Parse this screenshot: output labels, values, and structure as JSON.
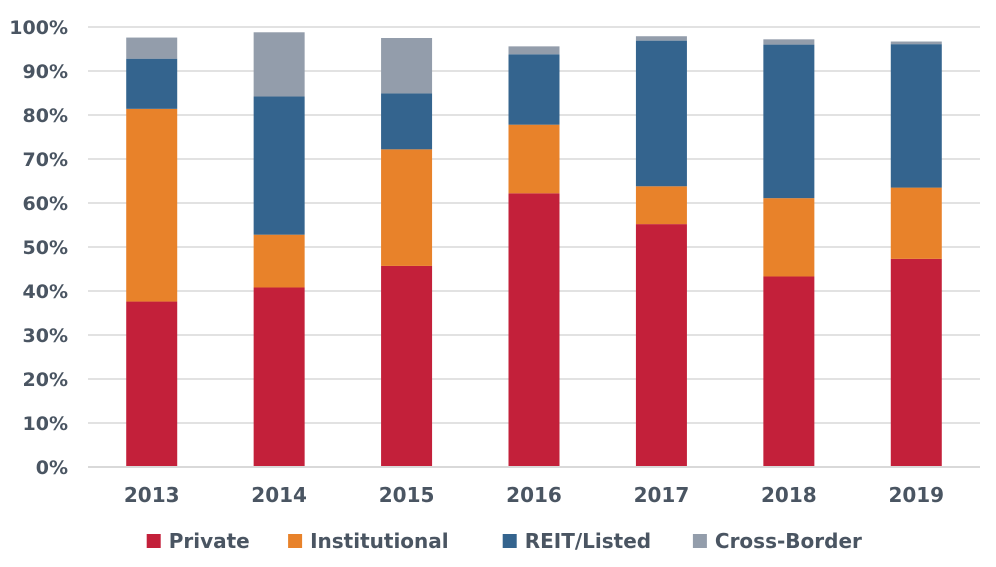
{
  "chart_data": {
    "type": "bar",
    "stacked": true,
    "categories": [
      "2013",
      "2014",
      "2015",
      "2016",
      "2017",
      "2018",
      "2019"
    ],
    "series": [
      {
        "name": "Private",
        "color": "#c3203a",
        "values": [
          37.6,
          40.8,
          45.7,
          62.2,
          55.2,
          43.3,
          47.3
        ]
      },
      {
        "name": "Institutional",
        "color": "#e8822a",
        "values": [
          43.8,
          12.0,
          26.5,
          15.6,
          8.6,
          17.8,
          16.2
        ]
      },
      {
        "name": "REIT/Listed",
        "color": "#34648e",
        "values": [
          11.4,
          31.4,
          12.7,
          16.0,
          33.1,
          34.9,
          32.6
        ]
      },
      {
        "name": "Cross-Border",
        "color": "#939dab",
        "values": [
          4.8,
          14.6,
          12.6,
          1.8,
          1.0,
          1.2,
          0.6
        ]
      }
    ],
    "ylim": [
      0,
      100
    ],
    "yticks": [
      "0%",
      "10%",
      "20%",
      "30%",
      "40%",
      "50%",
      "60%",
      "70%",
      "80%",
      "90%",
      "100%"
    ],
    "grid": true,
    "legend_position": "bottom",
    "axis_color": "#d9d9d9",
    "gridline_color": "#d9d9d9",
    "text_color": "#4a5562"
  }
}
